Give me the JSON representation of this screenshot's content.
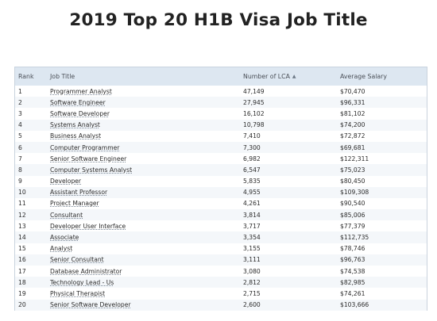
{
  "page": {
    "title": "2019 Top 20 H1B Visa Job Title"
  },
  "table": {
    "headers": {
      "rank": "Rank",
      "job_title": "Job Title",
      "lca": "Number of LCA",
      "salary": "Average Salary"
    },
    "sort_icon": "sort-arrow-icon",
    "rows": [
      {
        "rank": "1",
        "job": "Programmer Analyst",
        "lca": "47,149",
        "salary": "$70,470"
      },
      {
        "rank": "2",
        "job": "Software Engineer",
        "lca": "27,945",
        "salary": "$96,331"
      },
      {
        "rank": "3",
        "job": "Software Developer",
        "lca": "16,102",
        "salary": "$81,102"
      },
      {
        "rank": "4",
        "job": "Systems Analyst",
        "lca": "10,798",
        "salary": "$74,200"
      },
      {
        "rank": "5",
        "job": "Business Analyst",
        "lca": "7,410",
        "salary": "$72,872"
      },
      {
        "rank": "6",
        "job": "Computer Programmer",
        "lca": "7,300",
        "salary": "$69,681"
      },
      {
        "rank": "7",
        "job": "Senior Software Engineer",
        "lca": "6,982",
        "salary": "$122,311"
      },
      {
        "rank": "8",
        "job": "Computer Systems Analyst",
        "lca": "6,547",
        "salary": "$75,023"
      },
      {
        "rank": "9",
        "job": "Developer",
        "lca": "5,835",
        "salary": "$80,450"
      },
      {
        "rank": "10",
        "job": "Assistant Professor",
        "lca": "4,955",
        "salary": "$109,308"
      },
      {
        "rank": "11",
        "job": "Project Manager",
        "lca": "4,261",
        "salary": "$90,540"
      },
      {
        "rank": "12",
        "job": "Consultant",
        "lca": "3,814",
        "salary": "$85,006"
      },
      {
        "rank": "13",
        "job": "Developer User Interface",
        "lca": "3,717",
        "salary": "$77,379"
      },
      {
        "rank": "14",
        "job": "Associate",
        "lca": "3,354",
        "salary": "$112,735"
      },
      {
        "rank": "15",
        "job": "Analyst",
        "lca": "3,155",
        "salary": "$78,746"
      },
      {
        "rank": "16",
        "job": "Senior Consultant",
        "lca": "3,111",
        "salary": "$96,763"
      },
      {
        "rank": "17",
        "job": "Database Administrator",
        "lca": "3,080",
        "salary": "$74,538"
      },
      {
        "rank": "18",
        "job": "Technology Lead - Us",
        "lca": "2,812",
        "salary": "$82,985"
      },
      {
        "rank": "19",
        "job": "Physical Therapist",
        "lca": "2,715",
        "salary": "$74,261"
      },
      {
        "rank": "20",
        "job": "Senior Software Developer",
        "lca": "2,600",
        "salary": "$103,666"
      }
    ]
  }
}
